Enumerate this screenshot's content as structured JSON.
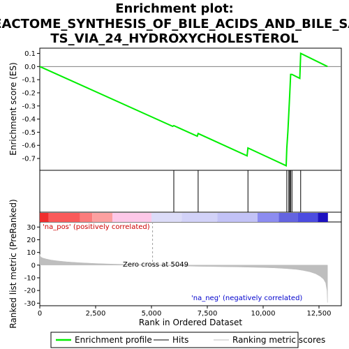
{
  "chart_data": {
    "type": "line",
    "title_lines": [
      "Enrichment plot:",
      "REACTOME_SYNTHESIS_OF_BILE_ACIDS_AND_BILE_SAL",
      "TS_VIA_24_HYDROXYCHOLESTEROL"
    ],
    "top_panel": {
      "ylabel": "Enrichment score (ES)",
      "ylim": [
        -0.79,
        0.14
      ],
      "yticks": [
        0.1,
        0.0,
        -0.1,
        -0.2,
        -0.3,
        -0.4,
        -0.5,
        -0.6,
        -0.7
      ],
      "ytick_labels": [
        "0.1",
        "0.0",
        "-0.1",
        "-0.2",
        "-0.3",
        "-0.4",
        "-0.5",
        "-0.6",
        "-0.7"
      ],
      "series": [
        {
          "name": "Enrichment profile",
          "color": "#00ee00",
          "x": [
            0,
            5950,
            6000,
            7050,
            7090,
            9280,
            9320,
            11030,
            11060,
            11110,
            11150,
            11190,
            11230,
            11290,
            11640,
            11680,
            12880
          ],
          "y": [
            0.0,
            -0.455,
            -0.45,
            -0.53,
            -0.51,
            -0.68,
            -0.62,
            -0.755,
            -0.62,
            -0.49,
            -0.35,
            -0.21,
            -0.06,
            -0.06,
            -0.09,
            0.1,
            0.0
          ]
        }
      ]
    },
    "hits": {
      "name": "Hits",
      "color": "#000000",
      "x": [
        6000,
        7090,
        9320,
        11060,
        11150,
        11190,
        11230,
        11290,
        11680
      ]
    },
    "color_bar": {
      "segments": [
        {
          "x_start": 0,
          "x_end": 400,
          "color": "#f02e2e"
        },
        {
          "x_start": 400,
          "x_end": 1800,
          "color": "#fa5a5a"
        },
        {
          "x_start": 1800,
          "x_end": 2350,
          "color": "#fb7c7c"
        },
        {
          "x_start": 2350,
          "x_end": 3250,
          "color": "#fca0a0"
        },
        {
          "x_start": 3250,
          "x_end": 5000,
          "color": "#fdc8e8"
        },
        {
          "x_start": 5000,
          "x_end": 6350,
          "color": "#dcdcf8"
        },
        {
          "x_start": 6350,
          "x_end": 7950,
          "color": "#d2d2f8"
        },
        {
          "x_start": 7950,
          "x_end": 9750,
          "color": "#c2c2f6"
        },
        {
          "x_start": 9750,
          "x_end": 10700,
          "color": "#8c8cf0"
        },
        {
          "x_start": 10700,
          "x_end": 11550,
          "color": "#6464e0"
        },
        {
          "x_start": 11550,
          "x_end": 12450,
          "color": "#4c4ce0"
        },
        {
          "x_start": 12450,
          "x_end": 12900,
          "color": "#1c10c0"
        }
      ]
    },
    "bottom_panel": {
      "ylabel": "Ranked list metric (PreRanked)",
      "ylim": [
        -32,
        34
      ],
      "yticks": [
        30,
        20,
        10,
        0,
        -10,
        -20,
        -30
      ],
      "ytick_labels": [
        "30",
        "20",
        "10",
        "0",
        "-10",
        "-20",
        "-30"
      ],
      "metric_profile": {
        "name": "Ranking metric scores",
        "color": "#bebebe",
        "x": [
          0,
          20,
          60,
          150,
          300,
          500,
          800,
          1200,
          1800,
          2500,
          3300,
          4200,
          5049,
          6000,
          7000,
          8000,
          9000,
          10000,
          10500,
          11000,
          11500,
          11800,
          12100,
          12350,
          12550,
          12700,
          12800,
          12860,
          12880
        ],
        "y": [
          8.5,
          7.2,
          6.2,
          5.5,
          4.8,
          4.0,
          3.3,
          2.6,
          1.9,
          1.3,
          0.8,
          0.4,
          0.0,
          -0.5,
          -0.9,
          -1.2,
          -1.5,
          -1.9,
          -2.2,
          -2.7,
          -3.4,
          -4.2,
          -5.3,
          -6.8,
          -8.8,
          -11.0,
          -14.0,
          -20.0,
          -29.5
        ]
      },
      "annotations": {
        "pos_label": "'na_pos' (positively correlated)",
        "pos_color": "#cc0000",
        "zero_cross": "Zero cross at 5049",
        "zero_cross_x": 5049,
        "neg_label": "'na_neg' (negatively correlated)",
        "neg_color": "#0000cc"
      }
    },
    "xlabel": "Rank in Ordered Dataset",
    "xlim": [
      0,
      13500
    ],
    "xticks": [
      0,
      2500,
      5000,
      7500,
      10000,
      12500
    ],
    "xtick_labels": [
      "0",
      "2,500",
      "5,000",
      "7,500",
      "10,000",
      "12,500"
    ],
    "legend": {
      "placement": "bottom",
      "items": [
        {
          "label": "Enrichment profile",
          "color": "#00ee00",
          "kind": "line"
        },
        {
          "label": "Hits",
          "color": "#000000",
          "kind": "line"
        },
        {
          "label": "Ranking metric scores",
          "color": "#bebebe",
          "kind": "line"
        }
      ]
    }
  }
}
